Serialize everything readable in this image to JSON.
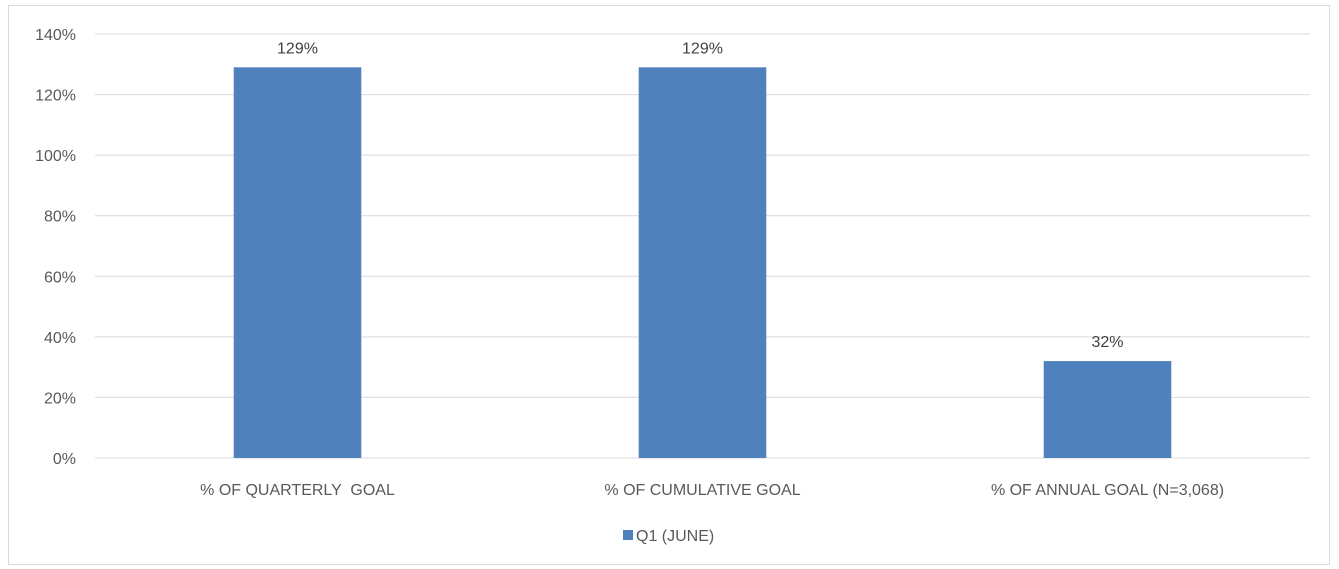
{
  "chart_data": {
    "type": "bar",
    "categories": [
      "% OF QUARTERLY  GOAL",
      "% OF CUMULATIVE GOAL",
      "% OF ANNUAL GOAL (N=3,068)"
    ],
    "series": [
      {
        "name": "Q1 (JUNE)",
        "values": [
          129,
          129,
          32
        ],
        "color": "#4f81bd"
      }
    ],
    "data_labels": [
      "129%",
      "129%",
      "32%"
    ],
    "yticks": [
      0,
      20,
      40,
      60,
      80,
      100,
      120,
      140
    ],
    "ytick_labels": [
      "0%",
      "20%",
      "40%",
      "60%",
      "80%",
      "100%",
      "120%",
      "140%"
    ],
    "ylim": [
      0,
      140
    ],
    "grid": true,
    "legend_position": "bottom",
    "gridline_color": "#d9d9d9"
  }
}
